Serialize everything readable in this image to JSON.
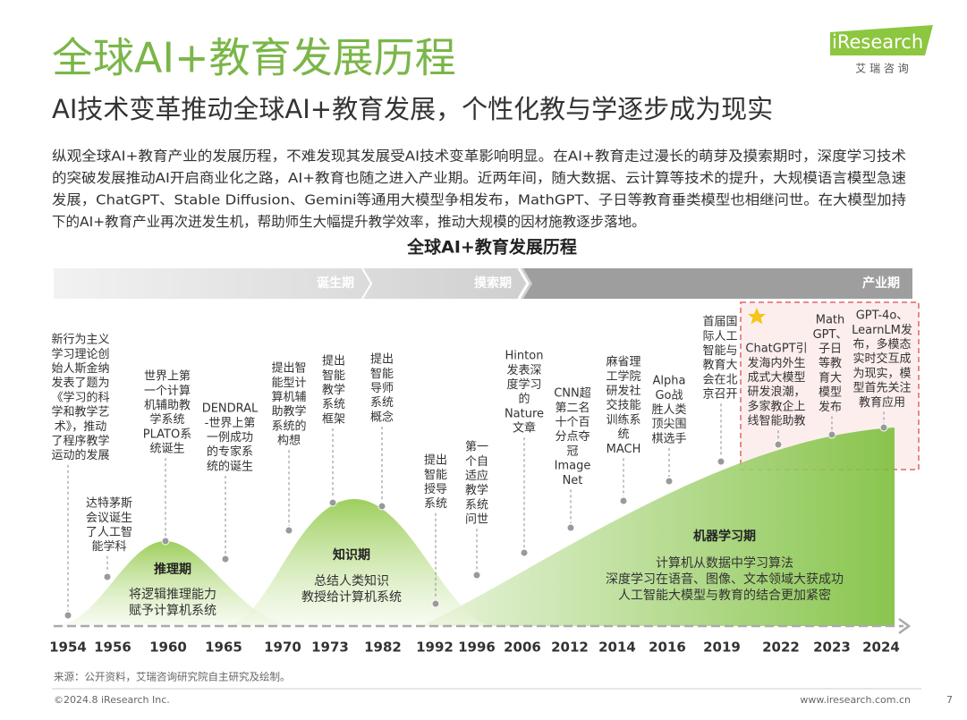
{
  "header": {
    "title": "全球AI+教育发展历程",
    "subtitle": "AI技术变革推动全球AI+教育发展，个性化教与学逐步成为现实",
    "logo": "iResearch",
    "logo_sub": "艾 瑞 咨 询"
  },
  "body": {
    "lines": [
      "纵观全球AI+教育产业的发展历程，不难发现其发展受AI技术变革影响明显。在AI+教育走过漫长的萌芽及摸索期时，深度学习技术",
      "的突破发展推动AI开启商业化之路，AI+教育也随之进入产业期。近两年间，随大数据、云计算等技术的提升，大规模语言模型急速",
      "发展，ChatGPT、Stable Diffusion、Gemini等通用大模型争相发布，MathGPT、子日等教育垂类模型也相继问世。在大模型加持",
      "下的AI+教育产业再次迸发生机，帮助师生大幅提升教学效率，推动大规模的因材施教逐步落地。"
    ]
  },
  "timeline": {
    "title": "全球AI+教育发展历程",
    "phases": [
      "诞生期",
      "摸索期",
      "产业期"
    ],
    "hills": [
      {
        "name": "推理期",
        "desc": [
          "将逻辑推理能力",
          "赋予计算机系统"
        ]
      },
      {
        "name": "知识期",
        "desc": [
          "总结人类知识",
          "教授给计算机系统"
        ]
      },
      {
        "name": "机器学习期",
        "desc": [
          "计算机从数据中学习算法",
          "深度学习在语音、图像、文本领域大获成功",
          "人工智能大模型与教育的结合更加紧密"
        ]
      }
    ],
    "events": [
      {
        "year": 1954,
        "lines": [
          "新行为主义",
          "学习理论创",
          "始人斯金纳",
          "发表了题为",
          "《学习的科",
          "学和教学艺",
          "术》，推动",
          "了程序教学",
          "运动的发展"
        ]
      },
      {
        "year": 1956,
        "lines": [
          "达特茅斯",
          "会议诞生",
          "了人工智",
          "能学科"
        ]
      },
      {
        "year": 1960,
        "lines": [
          "世界上第",
          "一个计算",
          "机辅助教",
          "学系统",
          "PLATO系",
          "统诞生"
        ]
      },
      {
        "year": 1965,
        "lines": [
          "DENDRAL",
          "-世界上第",
          "一例成功",
          "的专家系",
          "统的诞生"
        ]
      },
      {
        "year": 1970,
        "lines": [
          "提出智",
          "能型计",
          "算机辅",
          "助教学",
          "系统的",
          "构想"
        ]
      },
      {
        "year": 1973,
        "lines": [
          "提出",
          "智能",
          "教学",
          "系统",
          "框架"
        ]
      },
      {
        "year": 1982,
        "lines": [
          "提出",
          "智能",
          "导师",
          "系统",
          "概念"
        ]
      },
      {
        "year": 1992,
        "lines": [
          "提出",
          "智能",
          "授导",
          "系统"
        ]
      },
      {
        "year": 1996,
        "lines": [
          "第一",
          "个自",
          "适应",
          "教学",
          "系统",
          "问世"
        ]
      },
      {
        "year": 2006,
        "lines": [
          "Hinton",
          "发表深",
          "度学习",
          "的",
          "Nature",
          "文章"
        ]
      },
      {
        "year": 2012,
        "lines": [
          "CNN超",
          "第二名",
          "十个百",
          "分点夺",
          "冠",
          "Image",
          "Net"
        ]
      },
      {
        "year": 2014,
        "lines": [
          "麻省理",
          "工学院",
          "研发社",
          "交技能",
          "训练系",
          "统",
          "MACH"
        ]
      },
      {
        "year": 2016,
        "lines": [
          "Alpha",
          "Go战",
          "胜人类",
          "顶尖围",
          "棋选手"
        ]
      },
      {
        "year": 2019,
        "lines": [
          "首届国",
          "际人工",
          "智能与",
          "教育大",
          "会在北",
          "京召开"
        ]
      },
      {
        "year": 2022,
        "lines": [
          "ChatGPT引",
          "发海内外生",
          "成式大模型",
          "研发浪潮，",
          "多家教企上",
          "线智能助教"
        ]
      },
      {
        "year": 2023,
        "lines": [
          "Math",
          "GPT、",
          "子日",
          "等教",
          "育大",
          "模型",
          "发布"
        ]
      },
      {
        "year": 2024,
        "lines": [
          "GPT-4o、",
          "LearnLM发",
          "布，多模态",
          "实时交互成",
          "为现实，模",
          "型首先关注",
          "教育应用"
        ]
      }
    ]
  },
  "footer": {
    "source": "来源：公开资料，艾瑞咨询研究院自主研究及绘制。",
    "copyright": "©2024.8 iResearch Inc.",
    "url": "www.iresearch.com.cn",
    "page": "7"
  }
}
